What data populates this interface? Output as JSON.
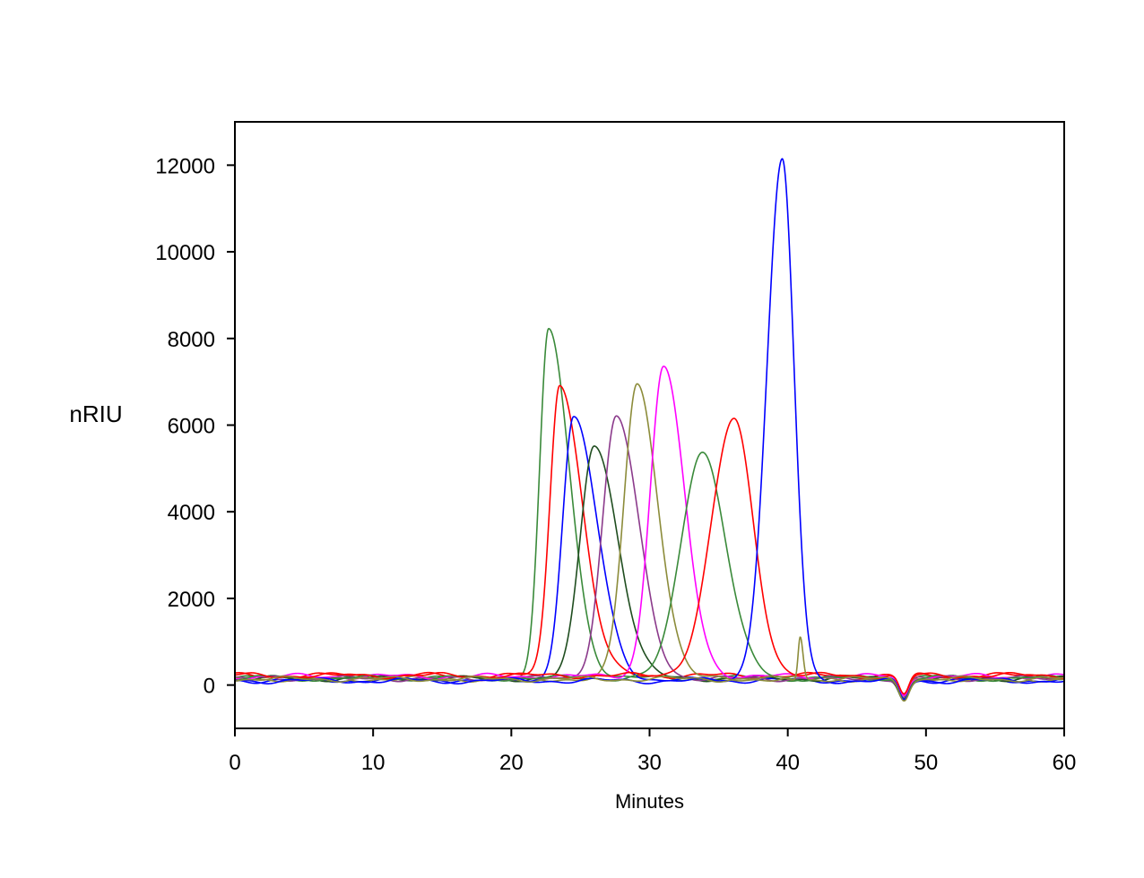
{
  "chart_data": {
    "type": "line",
    "xlabel": "Minutes",
    "ylabel": "nRIU",
    "xlim": [
      0,
      60
    ],
    "ylim": [
      -1000,
      13000
    ],
    "xticks": [
      0,
      10,
      20,
      30,
      40,
      50,
      60
    ],
    "yticks": [
      0,
      2000,
      4000,
      6000,
      8000,
      10000,
      12000
    ],
    "grid": false,
    "baseline_dip": {
      "center": 48.4,
      "depth": -450,
      "width": 0.35
    },
    "series": [
      {
        "color": "#3a8a3a",
        "baseline": 160,
        "peaks": [
          {
            "center": 22.7,
            "height": 8000,
            "sigma_left": 0.65,
            "sigma_right": 1.5
          }
        ]
      },
      {
        "color": "#ff0000",
        "baseline": 220,
        "peaks": [
          {
            "center": 23.5,
            "height": 6750,
            "sigma_left": 0.7,
            "sigma_right": 1.6
          }
        ]
      },
      {
        "color": "#0000ff",
        "baseline": 110,
        "peaks": [
          {
            "center": 24.5,
            "height": 6050,
            "sigma_left": 0.8,
            "sigma_right": 1.7
          }
        ]
      },
      {
        "color": "#1f4d1f",
        "baseline": 150,
        "peaks": [
          {
            "center": 26.0,
            "height": 5400,
            "sigma_left": 1.0,
            "sigma_right": 1.7
          }
        ]
      },
      {
        "color": "#8b3a8b",
        "baseline": 150,
        "peaks": [
          {
            "center": 27.6,
            "height": 6050,
            "sigma_left": 1.0,
            "sigma_right": 1.6
          }
        ]
      },
      {
        "color": "#8c8c3a",
        "baseline": 140,
        "peaks": [
          {
            "center": 29.1,
            "height": 6800,
            "sigma_left": 0.95,
            "sigma_right": 1.5
          }
        ]
      },
      {
        "color": "#ff00ff",
        "baseline": 200,
        "peaks": [
          {
            "center": 31.0,
            "height": 7150,
            "sigma_left": 0.95,
            "sigma_right": 1.5
          }
        ]
      },
      {
        "color": "#3a8a3a",
        "baseline": 160,
        "peaks": [
          {
            "center": 33.8,
            "height": 5250,
            "sigma_left": 1.5,
            "sigma_right": 1.7
          }
        ]
      },
      {
        "color": "#ff0000",
        "baseline": 220,
        "peaks": [
          {
            "center": 36.1,
            "height": 5900,
            "sigma_left": 1.6,
            "sigma_right": 1.4
          }
        ]
      },
      {
        "color": "#0000ff",
        "baseline": 100,
        "peaks": [
          {
            "center": 39.6,
            "height": 12000,
            "sigma_left": 1.1,
            "sigma_right": 0.85
          }
        ]
      },
      {
        "color": "#8c8c3a",
        "baseline": 140,
        "peaks": [
          {
            "center": 40.9,
            "height": 1000,
            "sigma_left": 0.15,
            "sigma_right": 0.2
          }
        ]
      }
    ]
  }
}
